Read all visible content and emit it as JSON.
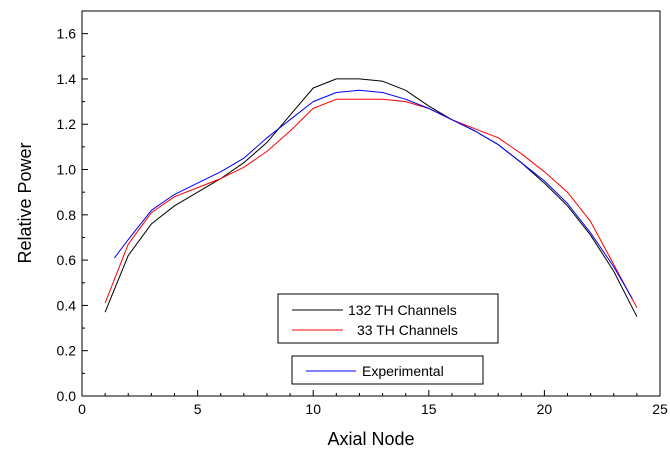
{
  "chart_data": {
    "type": "line",
    "xlabel": "Axial Node",
    "ylabel": "Relative Power",
    "xlim": [
      0,
      25
    ],
    "ylim": [
      0.0,
      1.7
    ],
    "xticks": [
      "0",
      "5",
      "10",
      "15",
      "20",
      "25"
    ],
    "yticks": [
      "0.0",
      "0.2",
      "0.4",
      "0.6",
      "0.8",
      "1.0",
      "1.2",
      "1.4",
      "1.6"
    ],
    "grid": false,
    "series": [
      {
        "name": "132 TH Channels",
        "color": "#000000",
        "x": [
          1,
          2,
          3,
          4,
          5,
          6,
          7,
          8,
          9,
          10,
          11,
          12,
          13,
          14,
          15,
          16,
          17,
          18,
          19,
          20,
          21,
          22,
          23,
          24
        ],
        "y": [
          0.37,
          0.62,
          0.76,
          0.84,
          0.9,
          0.96,
          1.03,
          1.12,
          1.24,
          1.36,
          1.4,
          1.4,
          1.39,
          1.35,
          1.28,
          1.22,
          1.17,
          1.11,
          1.03,
          0.94,
          0.84,
          0.71,
          0.55,
          0.35
        ]
      },
      {
        "name": "33 TH Channels",
        "color": "#ff0000",
        "x": [
          1,
          2,
          3,
          4,
          5,
          6,
          7,
          8,
          9,
          10,
          11,
          12,
          13,
          14,
          15,
          16,
          17,
          18,
          19,
          20,
          21,
          22,
          23,
          24
        ],
        "y": [
          0.41,
          0.67,
          0.81,
          0.88,
          0.92,
          0.96,
          1.01,
          1.08,
          1.17,
          1.27,
          1.31,
          1.31,
          1.31,
          1.3,
          1.27,
          1.22,
          1.18,
          1.14,
          1.07,
          0.99,
          0.9,
          0.77,
          0.58,
          0.39
        ]
      },
      {
        "name": "Experimental",
        "color": "#0000ff",
        "x": [
          1.4,
          2,
          3,
          4,
          5,
          6,
          7,
          8,
          9,
          10,
          11,
          12,
          13,
          14,
          15,
          16,
          17,
          18,
          19,
          20,
          21,
          22,
          23,
          23.8
        ],
        "y": [
          0.61,
          0.69,
          0.82,
          0.89,
          0.94,
          0.99,
          1.05,
          1.14,
          1.22,
          1.3,
          1.34,
          1.35,
          1.34,
          1.31,
          1.27,
          1.22,
          1.17,
          1.11,
          1.03,
          0.95,
          0.85,
          0.72,
          0.57,
          0.43
        ]
      }
    ]
  }
}
